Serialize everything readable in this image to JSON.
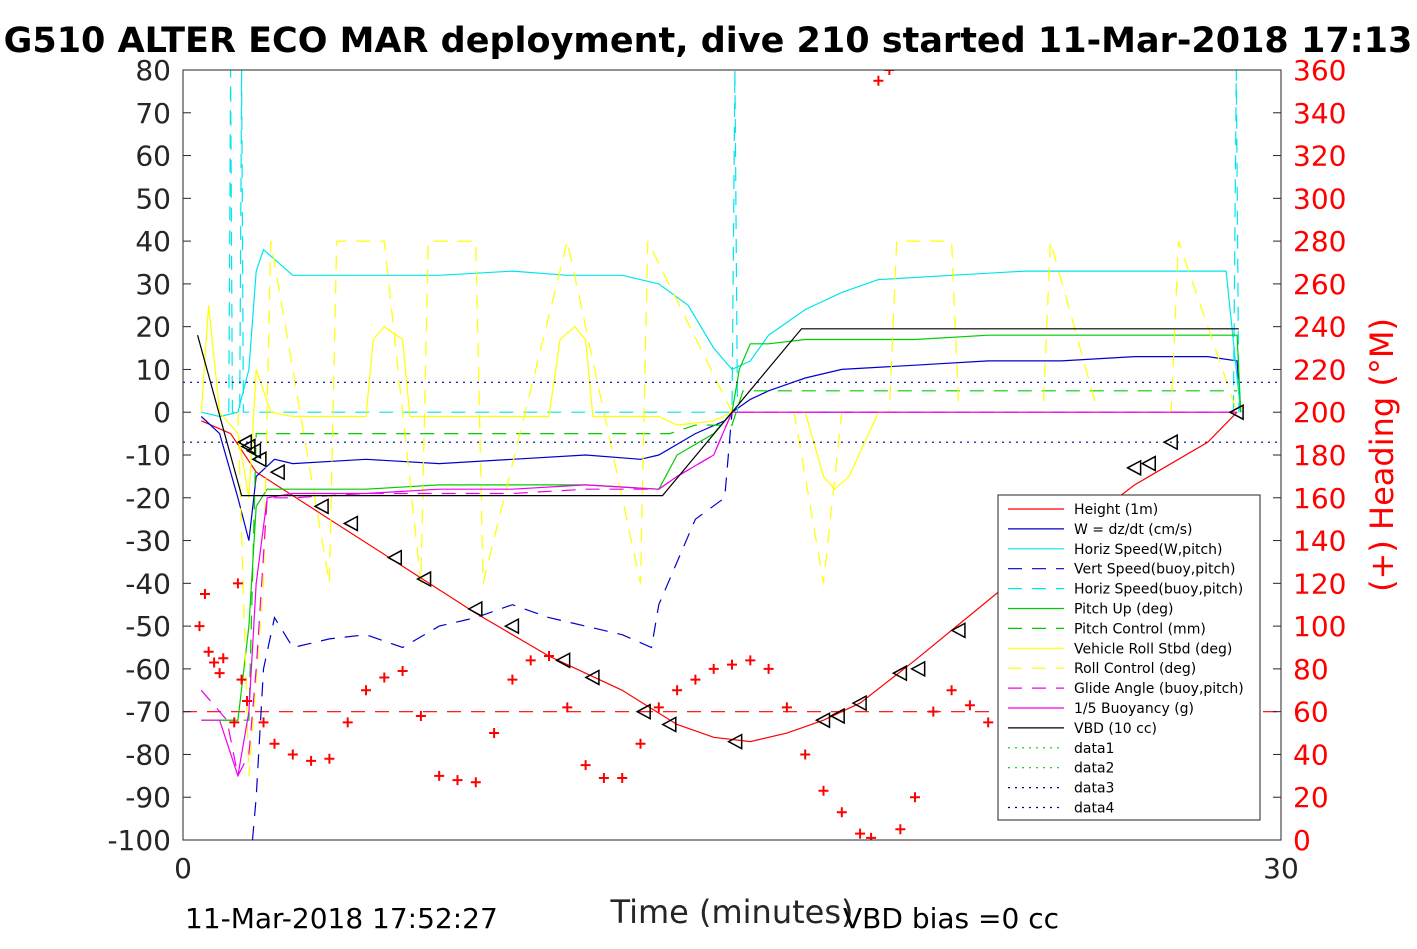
{
  "title": "G510 ALTER ECO MAR deployment, dive 210 started 11-Mar-2018 17:13",
  "footer_left": "11-Mar-2018 17:52:27",
  "footer_right": "VBD bias =0 cc",
  "chart_data": {
    "type": "line",
    "title": "G510 ALTER ECO MAR deployment, dive 210 started 11-Mar-2018 17:13",
    "xlabel": "Time (minutes)",
    "ylabel": "",
    "y2label": "(+) Heading (°M)",
    "xlim": [
      0,
      30
    ],
    "ylim": [
      -100,
      80
    ],
    "y2lim": [
      0,
      360
    ],
    "x_ticks": [
      "0",
      "30"
    ],
    "y_ticks": [
      "80",
      "70",
      "60",
      "50",
      "40",
      "30",
      "20",
      "10",
      "0",
      "-10",
      "-20",
      "-30",
      "-40",
      "-50",
      "-60",
      "-70",
      "-80",
      "-90",
      "-100"
    ],
    "y2_ticks": [
      "360",
      "340",
      "320",
      "300",
      "280",
      "260",
      "240",
      "220",
      "200",
      "180",
      "160",
      "140",
      "120",
      "100",
      "80",
      "60",
      "40",
      "20",
      "0"
    ],
    "grid": false,
    "legend_position": "lower-right",
    "series": [
      {
        "name": "Height (1m)",
        "color": "#ff0000",
        "style": "solid",
        "x": [
          0.5,
          1.3,
          2.0,
          4.0,
          6.0,
          8.0,
          10.0,
          12.0,
          13.5,
          14.5,
          15.5,
          16.5,
          17.5,
          18.5,
          20.0,
          22.0,
          24.0,
          26.0,
          28.0,
          28.8
        ],
        "y": [
          -2,
          -5,
          -14,
          -25,
          -36,
          -47,
          -57,
          -65,
          -73,
          -76,
          -77,
          -75,
          -72,
          -68,
          -58,
          -44,
          -30,
          -17,
          -7,
          0
        ]
      },
      {
        "name": "W = dz/dt (cm/s)",
        "color": "#0000cd",
        "style": "solid",
        "x": [
          0.5,
          1.0,
          1.5,
          1.8,
          2.0,
          2.5,
          3.0,
          5.0,
          7.0,
          9.0,
          11.0,
          12.5,
          13.0,
          14.0,
          14.8,
          15.0,
          15.5,
          16.0,
          17.0,
          18.0,
          20.0,
          22.0,
          24.0,
          26.0,
          28.0,
          28.8,
          28.9
        ],
        "y": [
          -1,
          -5,
          -20,
          -30,
          -15,
          -11,
          -12,
          -11,
          -12,
          -11,
          -10,
          -11,
          -10,
          -5,
          -2,
          0,
          3,
          5,
          8,
          10,
          11,
          12,
          12,
          13,
          13,
          12,
          0
        ]
      },
      {
        "name": "Horiz Speed(W,pitch)",
        "color": "#00e5ee",
        "style": "solid",
        "x": [
          0.5,
          1.0,
          1.5,
          1.8,
          2.0,
          2.2,
          3.0,
          5.0,
          7.0,
          9.0,
          10.5,
          12.0,
          13.0,
          13.8,
          14.5,
          15.0,
          15.5,
          16.0,
          17.0,
          18.0,
          19.0,
          21.0,
          23.0,
          25.0,
          27.0,
          28.5,
          28.9
        ],
        "y": [
          0,
          -1,
          0,
          10,
          33,
          38,
          32,
          32,
          32,
          33,
          32,
          32,
          30,
          25,
          15,
          10,
          12,
          18,
          24,
          28,
          31,
          32,
          33,
          33,
          33,
          33,
          0
        ]
      },
      {
        "name": "Vert Speed(buoy,pitch)",
        "color": "#0000cd",
        "style": "dashed",
        "x": [
          1.9,
          2.0,
          2.2,
          2.5,
          3.0,
          4.0,
          5.0,
          6.0,
          7.0,
          8.0,
          9.0,
          10.0,
          11.0,
          12.0,
          12.8,
          13.0,
          13.5,
          14.0,
          14.8,
          15.0,
          16.0,
          20.0,
          25.0,
          28.8
        ],
        "y": [
          -100,
          -90,
          -60,
          -48,
          -55,
          -53,
          -52,
          -55,
          -50,
          -48,
          -45,
          -48,
          -50,
          -52,
          -55,
          -45,
          -35,
          -25,
          -20,
          0,
          0,
          0,
          0,
          0
        ]
      },
      {
        "name": "Horiz Speed(buoy,pitch)",
        "color": "#00e5ee",
        "style": "dashed",
        "x": [
          1.25,
          1.3,
          1.35,
          1.55,
          1.6,
          1.65,
          2.0,
          15.0,
          15.08,
          15.15,
          20.0,
          28.7,
          28.78,
          28.85
        ],
        "y": [
          0,
          80,
          0,
          0,
          80,
          0,
          0,
          0,
          80,
          0,
          0,
          0,
          80,
          0
        ]
      },
      {
        "name": "Pitch Up (deg)",
        "color": "#00cd00",
        "style": "solid",
        "x": [
          0.5,
          1.0,
          1.5,
          1.8,
          2.0,
          2.3,
          3.0,
          5.0,
          7.0,
          9.0,
          11.0,
          13.0,
          13.5,
          14.5,
          15.0,
          15.2,
          15.5,
          16.0,
          17.0,
          18.0,
          20.0,
          22.0,
          24.0,
          26.0,
          28.0,
          28.8,
          28.9
        ],
        "y": [
          -72,
          -72,
          -72,
          -50,
          -22,
          -18,
          -18,
          -18,
          -17,
          -17,
          -17,
          -18,
          -10,
          -5,
          0,
          10,
          16,
          16,
          17,
          17,
          17,
          18,
          18,
          18,
          18,
          18,
          0
        ]
      },
      {
        "name": "Pitch Control (mm)",
        "color": "#00cd00",
        "style": "dashed",
        "x": [
          1.0,
          1.8,
          2.0,
          13.3,
          14.0,
          15.0,
          15.3,
          18.0,
          22.0,
          26.0,
          28.8
        ],
        "y": [
          -72,
          -72,
          -5,
          -5,
          -3,
          -3,
          5,
          5,
          5,
          5,
          5
        ]
      },
      {
        "name": "Vehicle Roll Stbd (deg)",
        "color": "#ffff00",
        "style": "solid",
        "x": [
          0.5,
          0.7,
          1.0,
          1.5,
          1.8,
          2.0,
          2.4,
          3.0,
          4.0,
          5.0,
          5.2,
          5.5,
          6.0,
          6.2,
          7.0,
          8.0,
          9.0,
          10.0,
          10.3,
          10.7,
          11.0,
          11.2,
          12.0,
          13.0,
          13.5,
          14.5,
          15.0,
          16.0,
          17.0,
          17.5,
          17.8,
          18.2,
          19.0,
          20.0,
          25.0,
          28.8
        ],
        "y": [
          0,
          25,
          0,
          -5,
          -20,
          10,
          0,
          -1,
          -1,
          -1,
          17,
          20,
          17,
          -1,
          -1,
          -1,
          -1,
          -1,
          17,
          20,
          17,
          -1,
          -1,
          -1,
          -3,
          -2,
          0,
          0,
          0,
          -15,
          -18,
          -15,
          0,
          0,
          0,
          0
        ]
      },
      {
        "name": "Roll Control (deg)",
        "color": "#ffff00",
        "style": "dashed",
        "x": [
          1.5,
          1.8,
          2.2,
          2.4,
          4.0,
          4.2,
          5.5,
          6.5,
          6.7,
          8.0,
          8.2,
          10.5,
          12.5,
          12.7,
          15.0,
          16.7,
          17.5,
          18.0,
          19.3,
          19.5,
          21.0,
          21.2,
          23.5,
          23.7,
          25.0,
          27.0,
          27.2,
          28.8
        ],
        "y": [
          0,
          -85,
          -40,
          40,
          -40,
          40,
          40,
          -40,
          40,
          40,
          -40,
          40,
          -40,
          40,
          0,
          0,
          -40,
          0,
          0,
          40,
          40,
          0,
          0,
          40,
          0,
          0,
          40,
          0
        ]
      },
      {
        "name": "Glide Angle (buoy,pitch)",
        "color": "#ee00ee",
        "style": "dashed",
        "x": [
          0.5,
          1.2,
          1.5,
          1.8,
          2.0,
          2.3,
          3.0,
          5.0,
          7.0,
          9.0,
          11.0,
          13.0,
          13.5,
          14.5,
          15.0,
          16.0,
          20.0,
          25.0,
          28.8
        ],
        "y": [
          -65,
          -72,
          -85,
          -80,
          -60,
          -20,
          -20,
          -19,
          -19,
          -19,
          -18,
          -18,
          -15,
          -10,
          0,
          0,
          0,
          0,
          0
        ]
      },
      {
        "name": "1/5 Buoyancy (g)",
        "color": "#ee00ee",
        "style": "solid",
        "x": [
          0.5,
          1.0,
          1.5,
          1.8,
          2.0,
          2.3,
          3.0,
          5.0,
          7.0,
          9.0,
          11.0,
          13.0,
          13.5,
          14.5,
          15.0,
          16.0,
          20.0,
          25.0,
          28.8
        ],
        "y": [
          -72,
          -72,
          -85,
          -70,
          -40,
          -20,
          -19,
          -19,
          -18,
          -18,
          -17,
          -18,
          -15,
          -10,
          0,
          0,
          0,
          0,
          0
        ]
      },
      {
        "name": "VBD (10 cc)",
        "color": "#000000",
        "style": "solid",
        "x": [
          0.4,
          1.6,
          1.9,
          13.1,
          15.0,
          16.9,
          28.85
        ],
        "y": [
          18,
          -19.5,
          -19.5,
          -19.5,
          0,
          19.5,
          19.5
        ]
      },
      {
        "name": "data1",
        "color": "#00cd00",
        "style": "dotted",
        "x": [],
        "y": []
      },
      {
        "name": "data2",
        "color": "#00cd00",
        "style": "dotted",
        "x": [],
        "y": []
      },
      {
        "name": "data3",
        "color": "#00008b",
        "style": "dotted",
        "x": [
          0,
          30
        ],
        "y": [
          7,
          7
        ]
      },
      {
        "name": "data4",
        "color": "#00008b",
        "style": "dotted",
        "x": [
          0,
          30
        ],
        "y": [
          -7,
          -7
        ]
      }
    ],
    "heading_ref_line": {
      "axis": "right",
      "y": 60,
      "color": "#ff0000",
      "style": "dashed"
    },
    "heading_markers": {
      "axis": "right",
      "color": "#ff0000",
      "marker": "+",
      "x": [
        0.45,
        0.6,
        0.7,
        0.85,
        1.0,
        1.1,
        1.4,
        1.5,
        1.6,
        1.75,
        2.2,
        2.5,
        3.0,
        3.5,
        4.0,
        4.5,
        5.0,
        5.5,
        6.0,
        6.5,
        7.0,
        7.5,
        8.0,
        8.5,
        9.0,
        9.5,
        10.0,
        10.5,
        11.0,
        11.5,
        12.0,
        12.5,
        13.0,
        13.5,
        14.0,
        14.5,
        15.0,
        15.5,
        16.0,
        16.5,
        17.0,
        17.5,
        18.0,
        18.5,
        18.8,
        19.0,
        19.3,
        19.6,
        20.0,
        20.5,
        21.0,
        21.5,
        22.0,
        22.5,
        23.0,
        23.5,
        24.0,
        24.5,
        25.0,
        25.5,
        26.0,
        26.5,
        27.0,
        27.5,
        28.0
      ],
      "y": [
        100,
        115,
        88,
        83,
        78,
        85,
        55,
        120,
        75,
        65,
        55,
        45,
        40,
        37,
        38,
        55,
        70,
        76,
        79,
        58,
        30,
        28,
        27,
        50,
        75,
        84,
        86,
        62,
        35,
        29,
        29,
        45,
        62,
        70,
        75,
        80,
        82,
        84,
        80,
        62,
        40,
        23,
        13,
        3,
        1,
        355,
        360,
        5,
        20,
        60,
        70,
        63,
        55,
        46,
        38,
        44,
        62,
        70,
        62,
        55,
        45,
        42,
        40,
        45,
        50
      ]
    },
    "triangle_markers": {
      "color": "#000000",
      "x": [
        1.7,
        1.8,
        1.95,
        2.1,
        2.6,
        3.8,
        4.6,
        5.8,
        6.6,
        8.0,
        9.0,
        10.4,
        11.2,
        12.6,
        13.3,
        15.1,
        17.5,
        17.9,
        18.5,
        19.6,
        20.1,
        21.2,
        23.0,
        24.0,
        26.0,
        26.4,
        27.0,
        28.8
      ],
      "y": [
        -7,
        -8,
        -9,
        -11,
        -14,
        -22,
        -26,
        -34,
        -39,
        -46,
        -50,
        -58,
        -62,
        -70,
        -73,
        -77,
        -72,
        -71,
        -68,
        -61,
        -60,
        -51,
        -36,
        -30,
        -13,
        -12,
        -7,
        0
      ]
    }
  }
}
